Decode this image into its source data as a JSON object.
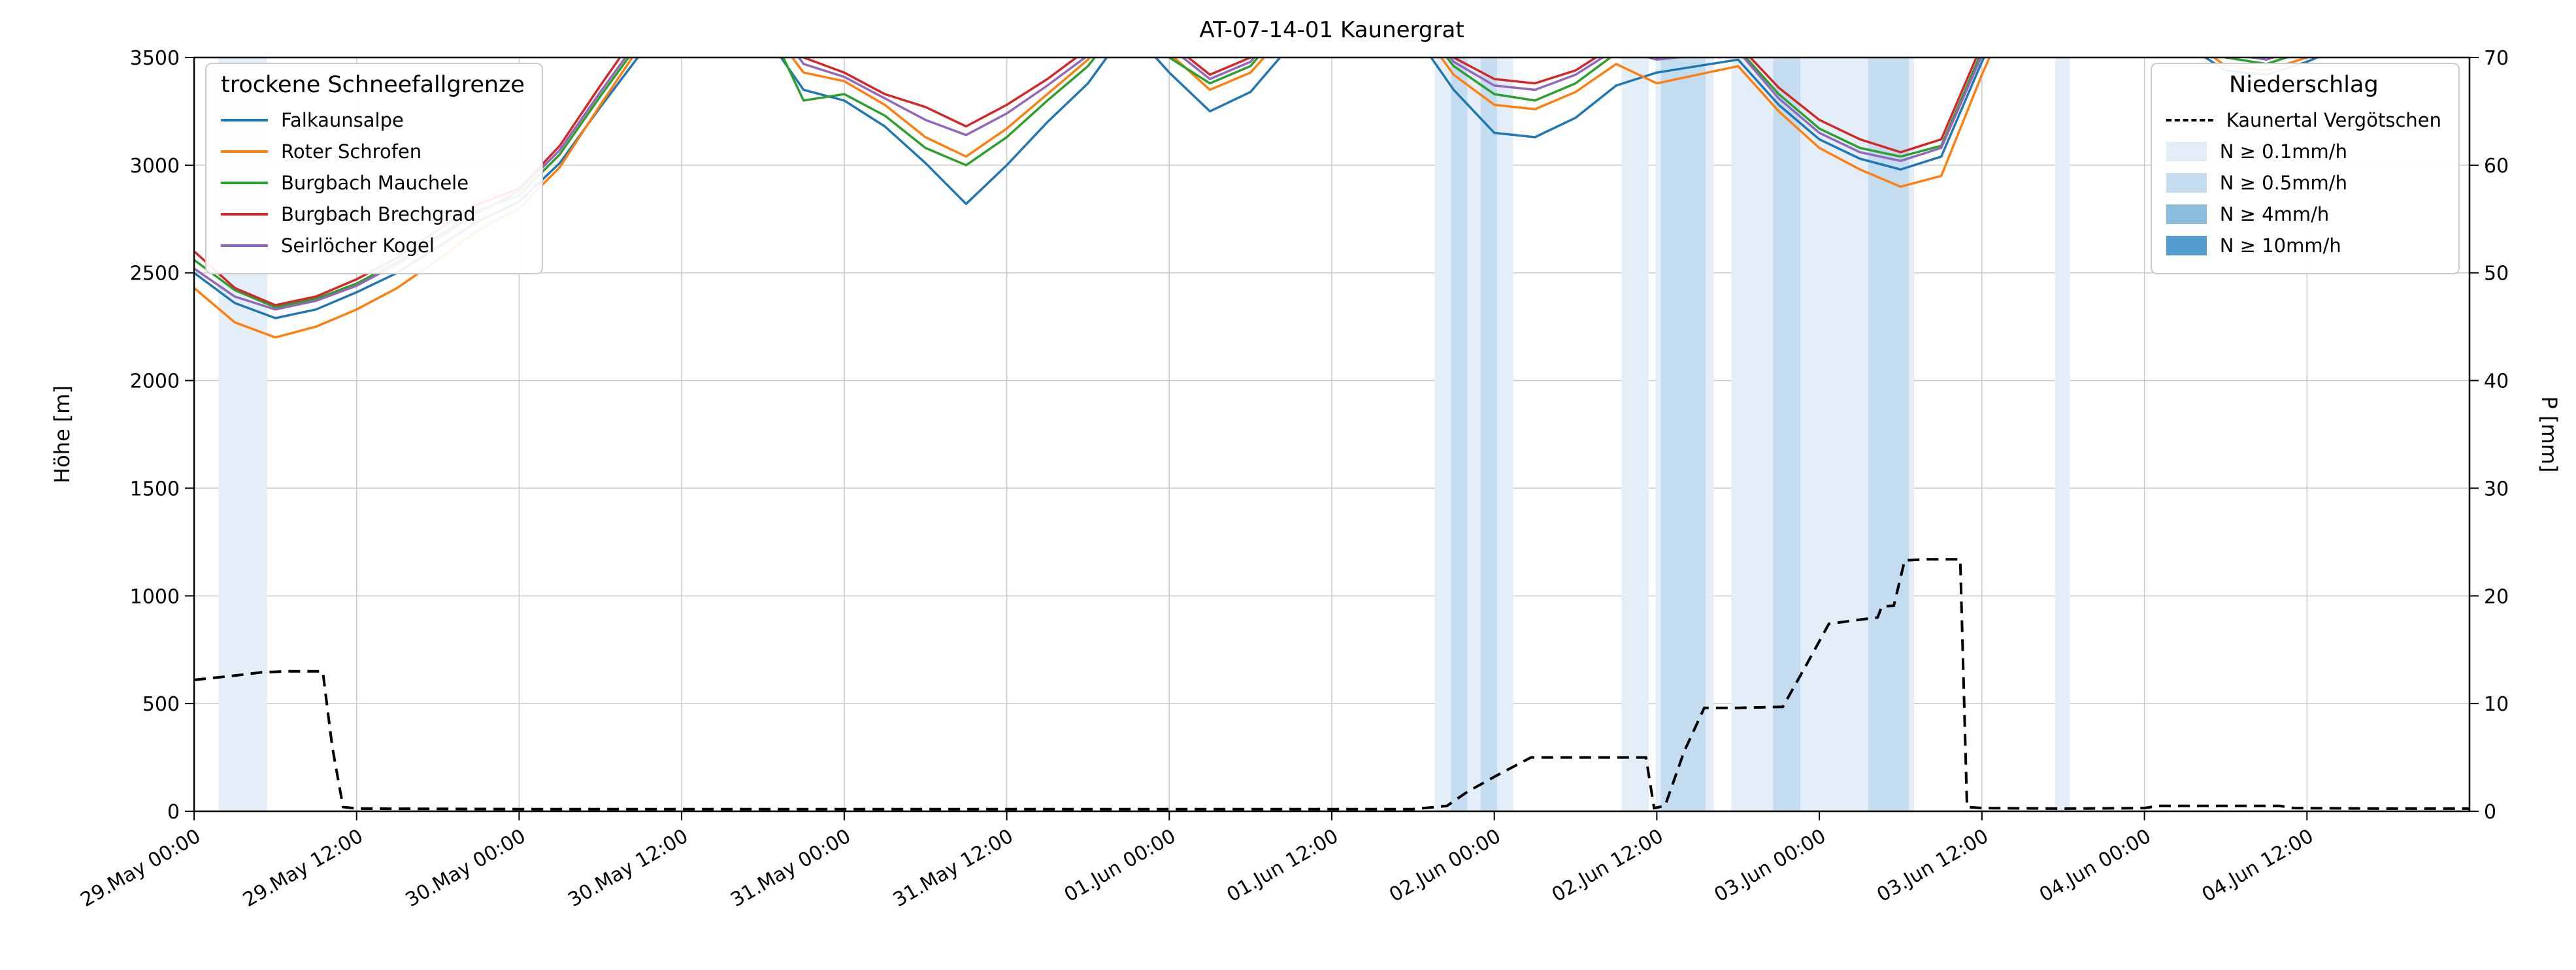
{
  "title": "AT-07-14-01 Kaunergrat",
  "axes": {
    "left_label": "Höhe [m]",
    "right_label": "P [mm]",
    "left_ticks": [
      0,
      500,
      1000,
      1500,
      2000,
      2500,
      3000,
      3500
    ],
    "right_ticks": [
      0,
      10,
      20,
      30,
      40,
      50,
      60,
      70
    ],
    "x_tick_labels": [
      "29.May 00:00",
      "29.May 12:00",
      "30.May 00:00",
      "30.May 12:00",
      "31.May 00:00",
      "31.May 12:00",
      "01.Jun 00:00",
      "01.Jun 12:00",
      "02.Jun 00:00",
      "02.Jun 12:00",
      "03.Jun 00:00",
      "03.Jun 12:00",
      "04.Jun 00:00",
      "04.Jun 12:00"
    ]
  },
  "legend_snowline": {
    "title": "trockene Schneefallgrenze",
    "items": [
      {
        "label": "Falkaunsalpe",
        "color": "#1f77b4"
      },
      {
        "label": "Roter Schrofen",
        "color": "#ff7f0e"
      },
      {
        "label": "Burgbach Mauchele",
        "color": "#2ca02c"
      },
      {
        "label": "Burgbach Brechgrad",
        "color": "#d62728"
      },
      {
        "label": "Seirlöcher Kogel",
        "color": "#9467bd"
      }
    ]
  },
  "legend_precip": {
    "title": "Niederschlag",
    "line_item": {
      "label": "Kaunertal Vergötschen",
      "color": "#000000"
    }
  },
  "chart_data": {
    "type": "line",
    "title": "AT-07-14-01 Kaunergrat",
    "xlabel": "",
    "ylabel_left": "Höhe [m]",
    "ylabel_right": "P [mm]",
    "x_unit": "hours since 29.May 00:00",
    "x_range": [
      0,
      168
    ],
    "x_tick_step_hours": 12,
    "ylim_left": [
      0,
      3500
    ],
    "ylim_right": [
      0,
      70
    ],
    "grid": true,
    "band_levels": [
      {
        "label": "N ≥ 0.1mm/h",
        "color": "#e4eef9"
      },
      {
        "label": "N ≥ 0.5mm/h",
        "color": "#c3dcf0"
      },
      {
        "label": "N ≥ 4mm/h",
        "color": "#8bbcdf"
      },
      {
        "label": "N ≥ 10mm/h",
        "color": "#539cce"
      }
    ],
    "precip_bands": [
      {
        "start": 1.8,
        "end": 5.4,
        "level": 1
      },
      {
        "start": 91.6,
        "end": 97.4,
        "level": 1
      },
      {
        "start": 92.8,
        "end": 94.0,
        "level": 2
      },
      {
        "start": 95.0,
        "end": 96.2,
        "level": 2
      },
      {
        "start": 105.4,
        "end": 107.4,
        "level": 1
      },
      {
        "start": 107.9,
        "end": 112.2,
        "level": 1
      },
      {
        "start": 108.3,
        "end": 111.6,
        "level": 2
      },
      {
        "start": 113.5,
        "end": 127.0,
        "level": 1
      },
      {
        "start": 116.6,
        "end": 118.6,
        "level": 2
      },
      {
        "start": 123.6,
        "end": 126.6,
        "level": 2
      },
      {
        "start": 137.4,
        "end": 138.5,
        "level": 1
      }
    ],
    "snowline_series": [
      {
        "name": "Falkaunsalpe",
        "color": "#1f77b4",
        "x_step": 3,
        "values": [
          2500,
          2360,
          2290,
          2330,
          2410,
          2500,
          2620,
          2740,
          2830,
          3010,
          3270,
          3520,
          3850,
          3900,
          3620,
          3350,
          3300,
          3180,
          3010,
          2820,
          3000,
          3200,
          3380,
          3640,
          3430,
          3250,
          3340,
          3560,
          3850,
          3850,
          3620,
          3350,
          3150,
          3130,
          3220,
          3370,
          3430,
          3460,
          3490,
          3280,
          3120,
          3030,
          2980,
          3040,
          3480,
          3850,
          3900,
          3850,
          3750,
          3560,
          3440,
          3420,
          3480,
          3560,
          3650,
          3760,
          3850
        ]
      },
      {
        "name": "Roter Schrofen",
        "color": "#ff7f0e",
        "x_step": 3,
        "values": [
          2430,
          2270,
          2200,
          2250,
          2330,
          2430,
          2560,
          2700,
          2800,
          2990,
          3280,
          3560,
          3900,
          3950,
          3680,
          3430,
          3390,
          3280,
          3130,
          3040,
          3170,
          3330,
          3490,
          3720,
          3520,
          3350,
          3430,
          3640,
          3900,
          3900,
          3680,
          3420,
          3280,
          3260,
          3340,
          3470,
          3380,
          3420,
          3460,
          3250,
          3080,
          2980,
          2900,
          2950,
          3420,
          3850,
          3950,
          3900,
          3800,
          3600,
          3460,
          3440,
          3500,
          3580,
          3680,
          3780,
          3880
        ]
      },
      {
        "name": "Burgbach Mauchele",
        "color": "#2ca02c",
        "x_step": 3,
        "values": [
          2560,
          2420,
          2340,
          2380,
          2450,
          2550,
          2670,
          2790,
          2860,
          3050,
          3320,
          3580,
          3920,
          3960,
          3700,
          3300,
          3330,
          3230,
          3080,
          3000,
          3130,
          3300,
          3460,
          3700,
          3500,
          3380,
          3460,
          3680,
          3920,
          3920,
          3700,
          3460,
          3330,
          3300,
          3380,
          3520,
          3500,
          3520,
          3540,
          3330,
          3170,
          3080,
          3040,
          3090,
          3530,
          3900,
          3960,
          3920,
          3820,
          3640,
          3500,
          3470,
          3530,
          3610,
          3700,
          3800,
          3900
        ]
      },
      {
        "name": "Burgbach Brechgrad",
        "color": "#d62728",
        "x_step": 3,
        "values": [
          2600,
          2430,
          2350,
          2390,
          2470,
          2570,
          2700,
          2820,
          2890,
          3090,
          3370,
          3640,
          3960,
          4000,
          3760,
          3500,
          3430,
          3330,
          3270,
          3180,
          3280,
          3400,
          3540,
          3780,
          3570,
          3420,
          3500,
          3720,
          3960,
          3960,
          3740,
          3500,
          3400,
          3380,
          3440,
          3560,
          3520,
          3540,
          3560,
          3360,
          3210,
          3120,
          3060,
          3120,
          3560,
          3920,
          4000,
          3960,
          3860,
          3680,
          3540,
          3510,
          3570,
          3650,
          3740,
          3840,
          3940
        ]
      },
      {
        "name": "Seirlöcher Kogel",
        "color": "#9467bd",
        "x_step": 3,
        "values": [
          2520,
          2390,
          2330,
          2370,
          2440,
          2540,
          2660,
          2780,
          2880,
          3070,
          3340,
          3600,
          3940,
          3980,
          3730,
          3470,
          3410,
          3310,
          3210,
          3140,
          3240,
          3370,
          3510,
          3750,
          3550,
          3400,
          3480,
          3700,
          3940,
          3940,
          3720,
          3480,
          3370,
          3350,
          3420,
          3540,
          3490,
          3510,
          3530,
          3310,
          3150,
          3060,
          3020,
          3080,
          3510,
          3890,
          3980,
          3940,
          3840,
          3660,
          3520,
          3490,
          3550,
          3630,
          3720,
          3820,
          3920
        ]
      }
    ],
    "precipitation_line": {
      "name": "Kaunertal Vergötschen",
      "axis": "right",
      "style": "dashed",
      "color": "#000000",
      "points": [
        [
          0,
          12.2
        ],
        [
          1.5,
          12.4
        ],
        [
          3,
          12.6
        ],
        [
          5,
          12.9
        ],
        [
          7,
          13.0
        ],
        [
          9.5,
          13.0
        ],
        [
          10.2,
          6.0
        ],
        [
          11,
          0.4
        ],
        [
          12,
          0.25
        ],
        [
          24,
          0.2
        ],
        [
          36,
          0.2
        ],
        [
          48,
          0.2
        ],
        [
          60,
          0.2
        ],
        [
          72,
          0.2
        ],
        [
          84,
          0.2
        ],
        [
          90,
          0.2
        ],
        [
          92.5,
          0.5
        ],
        [
          94,
          1.8
        ],
        [
          96,
          3.2
        ],
        [
          98.7,
          5.0
        ],
        [
          103,
          5.0
        ],
        [
          107.2,
          5.0
        ],
        [
          107.8,
          0.3
        ],
        [
          108.6,
          0.5
        ],
        [
          110,
          5.5
        ],
        [
          111.5,
          9.6
        ],
        [
          114,
          9.6
        ],
        [
          117.3,
          9.7
        ],
        [
          119,
          13.5
        ],
        [
          120.7,
          17.4
        ],
        [
          123,
          17.8
        ],
        [
          124.3,
          18.0
        ],
        [
          124.6,
          19.0
        ],
        [
          125.5,
          19.1
        ],
        [
          126.3,
          23.3
        ],
        [
          128,
          23.4
        ],
        [
          130.4,
          23.4
        ],
        [
          130.9,
          0.4
        ],
        [
          132,
          0.3
        ],
        [
          138,
          0.25
        ],
        [
          144,
          0.3
        ],
        [
          145,
          0.5
        ],
        [
          150,
          0.5
        ],
        [
          154,
          0.5
        ],
        [
          155,
          0.3
        ],
        [
          162,
          0.25
        ],
        [
          168,
          0.25
        ]
      ]
    }
  }
}
